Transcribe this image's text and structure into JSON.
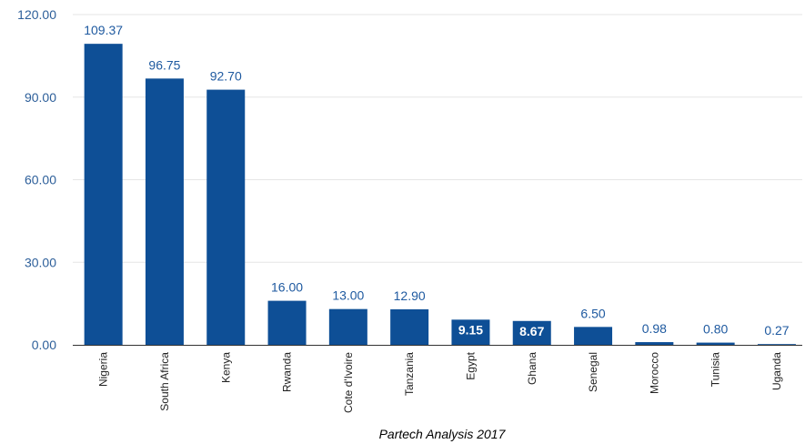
{
  "chart_data": {
    "type": "bar",
    "categories": [
      "Nigeria",
      "South Africa",
      "Kenya",
      "Rwanda",
      "Cote d'Ivoire",
      "Tanzania",
      "Egypt",
      "Ghana",
      "Senegal",
      "Morocco",
      "Tunisia",
      "Uganda"
    ],
    "values": [
      109.37,
      96.75,
      92.7,
      16.0,
      13.0,
      12.9,
      9.15,
      8.67,
      6.5,
      0.98,
      0.8,
      0.27
    ],
    "value_labels": [
      "109.37",
      "96.75",
      "92.70",
      "16.00",
      "13.00",
      "12.90",
      "9.15",
      "8.67",
      "6.50",
      "0.98",
      "0.80",
      "0.27"
    ],
    "labels_inside_bar": [
      false,
      false,
      false,
      false,
      false,
      false,
      true,
      true,
      false,
      false,
      false,
      false
    ],
    "y_ticks": [
      0,
      30,
      60,
      90,
      120
    ],
    "y_tick_labels": [
      "0.00",
      "30.00",
      "60.00",
      "90.00",
      "120.00"
    ],
    "ylim": [
      0,
      120
    ],
    "title": "",
    "xlabel": "Partech Analysis 2017",
    "ylabel": "",
    "grid": true,
    "legend": "none",
    "colors": {
      "bar": "#0e4f96",
      "label_text": "#1f5aa0",
      "tick_text": "#2d5f9a",
      "grid": "#e6e6e6",
      "axis": "#333333",
      "category_text": "#222222",
      "inside_label_text": "#ffffff"
    }
  }
}
